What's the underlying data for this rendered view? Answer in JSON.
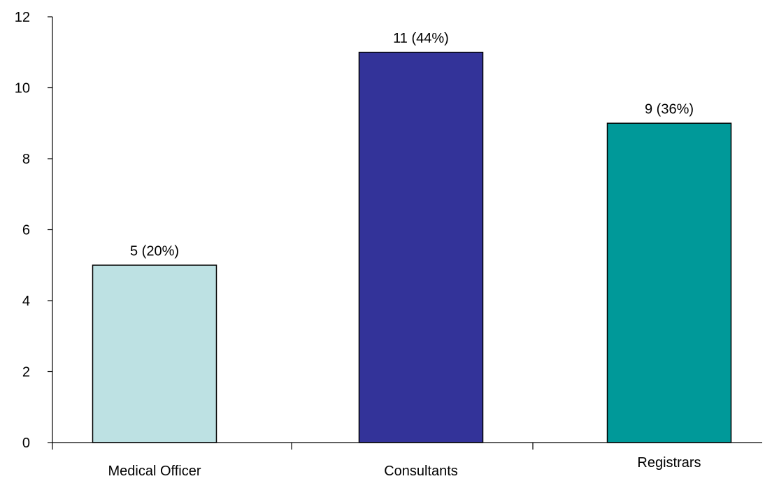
{
  "chart_data": {
    "type": "bar",
    "title": "",
    "xlabel": "",
    "ylabel": "",
    "categories": [
      "Medical Officer",
      "Consultants",
      "Registrars"
    ],
    "values": [
      5,
      11,
      9
    ],
    "data_labels": [
      "5 (20%)",
      "11 (44%)",
      "9 (36%)"
    ],
    "bar_colors": [
      "#BDE1E3",
      "#333399",
      "#009999"
    ],
    "bar_outline_color": "#000000",
    "ylim": [
      0,
      12
    ],
    "yticks": [
      0,
      2,
      4,
      6,
      8,
      10,
      12
    ],
    "ytick_labels": [
      "0",
      "2",
      "4",
      "6",
      "8",
      "10",
      "12"
    ],
    "grid": false,
    "legend": "none"
  }
}
